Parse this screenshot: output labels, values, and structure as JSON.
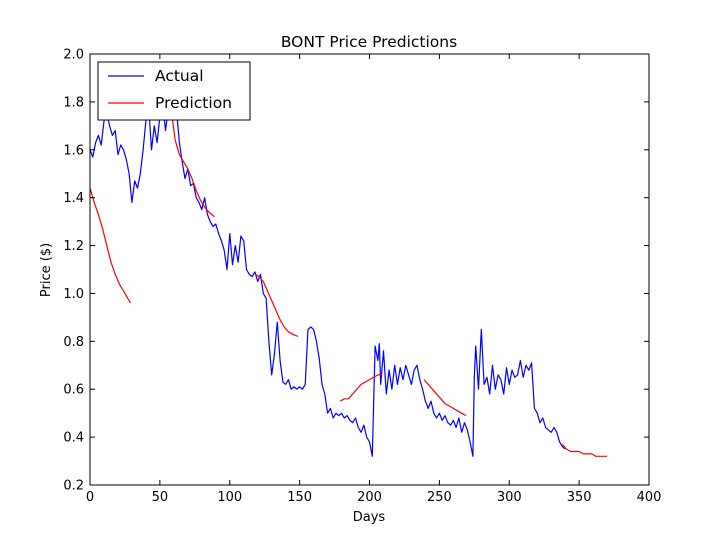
{
  "chart_data": {
    "type": "line",
    "title": "BONT Price Predictions",
    "xlabel": "Days",
    "ylabel": "Price ($)",
    "xlim": [
      0,
      400
    ],
    "ylim": [
      0.2,
      2.0
    ],
    "xticks": [
      0,
      50,
      100,
      150,
      200,
      250,
      300,
      350,
      400
    ],
    "yticks": [
      0.2,
      0.4,
      0.6,
      0.8,
      1.0,
      1.2,
      1.4,
      1.6,
      1.8,
      2.0
    ],
    "ytick_labels": [
      "0.2",
      "0.4",
      "0.6",
      "0.8",
      "1.0",
      "1.2",
      "1.4",
      "1.6",
      "1.8",
      "2.0"
    ],
    "grid": false,
    "legend_position": "top-left",
    "series": [
      {
        "name": "Actual",
        "color": "#0000ff",
        "x": [
          0,
          2,
          4,
          6,
          8,
          10,
          12,
          14,
          16,
          18,
          20,
          22,
          24,
          26,
          28,
          30,
          32,
          34,
          36,
          38,
          40,
          42,
          44,
          46,
          48,
          50,
          52,
          54,
          56,
          58,
          60,
          62,
          64,
          66,
          68,
          70,
          72,
          74,
          76,
          78,
          80,
          82,
          84,
          86,
          88,
          90,
          92,
          94,
          96,
          98,
          100,
          102,
          104,
          106,
          108,
          110,
          112,
          114,
          116,
          118,
          120,
          122,
          124,
          126,
          128,
          130,
          132,
          134,
          136,
          138,
          140,
          142,
          144,
          146,
          148,
          150,
          152,
          154,
          156,
          158,
          160,
          162,
          164,
          166,
          168,
          170,
          172,
          174,
          176,
          178,
          180,
          182,
          184,
          186,
          188,
          190,
          192,
          194,
          196,
          198,
          200,
          202,
          204,
          206,
          207,
          208,
          210,
          212,
          214,
          216,
          218,
          220,
          222,
          224,
          226,
          228,
          230,
          232,
          234,
          236,
          238,
          240,
          242,
          244,
          246,
          248,
          250,
          252,
          254,
          256,
          258,
          260,
          262,
          264,
          266,
          268,
          270,
          272,
          274,
          275,
          276,
          278,
          280,
          282,
          284,
          286,
          288,
          290,
          292,
          294,
          296,
          298,
          300,
          302,
          304,
          306,
          308,
          310,
          312,
          314,
          316,
          318,
          320,
          322,
          324,
          326,
          328,
          330,
          332,
          334,
          336,
          338,
          340
        ],
        "y": [
          1.6,
          1.57,
          1.63,
          1.66,
          1.62,
          1.72,
          1.75,
          1.7,
          1.66,
          1.68,
          1.58,
          1.62,
          1.6,
          1.56,
          1.5,
          1.38,
          1.47,
          1.44,
          1.5,
          1.6,
          1.72,
          1.78,
          1.6,
          1.7,
          1.63,
          1.74,
          1.8,
          1.68,
          1.77,
          1.75,
          1.82,
          1.76,
          1.63,
          1.55,
          1.48,
          1.52,
          1.45,
          1.46,
          1.4,
          1.38,
          1.35,
          1.4,
          1.33,
          1.3,
          1.28,
          1.29,
          1.25,
          1.22,
          1.18,
          1.1,
          1.25,
          1.12,
          1.2,
          1.13,
          1.24,
          1.22,
          1.1,
          1.08,
          1.07,
          1.09,
          1.05,
          1.08,
          1.0,
          0.98,
          0.8,
          0.66,
          0.75,
          0.88,
          0.72,
          0.63,
          0.62,
          0.64,
          0.6,
          0.61,
          0.6,
          0.61,
          0.6,
          0.62,
          0.85,
          0.86,
          0.85,
          0.8,
          0.73,
          0.62,
          0.58,
          0.5,
          0.52,
          0.48,
          0.5,
          0.49,
          0.5,
          0.48,
          0.49,
          0.47,
          0.46,
          0.48,
          0.44,
          0.42,
          0.45,
          0.4,
          0.38,
          0.32,
          0.78,
          0.72,
          0.79,
          0.62,
          0.76,
          0.58,
          0.68,
          0.6,
          0.7,
          0.62,
          0.69,
          0.64,
          0.7,
          0.66,
          0.62,
          0.68,
          0.7,
          0.64,
          0.6,
          0.55,
          0.52,
          0.55,
          0.5,
          0.48,
          0.5,
          0.47,
          0.49,
          0.46,
          0.45,
          0.47,
          0.44,
          0.48,
          0.42,
          0.46,
          0.43,
          0.38,
          0.32,
          0.65,
          0.78,
          0.6,
          0.85,
          0.62,
          0.65,
          0.58,
          0.7,
          0.6,
          0.66,
          0.64,
          0.58,
          0.69,
          0.62,
          0.68,
          0.65,
          0.66,
          0.72,
          0.65,
          0.7,
          0.68,
          0.71,
          0.52,
          0.5,
          0.46,
          0.48,
          0.44,
          0.43,
          0.42,
          0.44,
          0.42,
          0.38,
          0.36,
          0.35
        ]
      },
      {
        "name": "Prediction",
        "color": "#ff0000",
        "segments": [
          {
            "x": [
              0,
              3,
              6,
              9,
              12,
              15,
              18,
              21,
              24,
              27,
              29
            ],
            "y": [
              1.44,
              1.38,
              1.33,
              1.27,
              1.2,
              1.13,
              1.08,
              1.04,
              1.01,
              0.98,
              0.96
            ]
          },
          {
            "x": [
              58,
              61,
              64,
              67,
              70,
              73,
              76,
              79,
              82,
              85,
              89
            ],
            "y": [
              1.77,
              1.64,
              1.58,
              1.55,
              1.52,
              1.48,
              1.43,
              1.39,
              1.36,
              1.34,
              1.32
            ]
          },
          {
            "x": [
              118,
              121,
              124,
              127,
              130,
              133,
              136,
              139,
              142,
              145,
              149
            ],
            "y": [
              1.08,
              1.07,
              1.05,
              1.01,
              0.97,
              0.93,
              0.89,
              0.86,
              0.84,
              0.83,
              0.82
            ]
          },
          {
            "x": [
              179,
              182,
              185,
              188,
              191,
              194,
              197,
              200,
              203,
              206,
              209
            ],
            "y": [
              0.55,
              0.56,
              0.56,
              0.58,
              0.6,
              0.62,
              0.63,
              0.64,
              0.65,
              0.66,
              0.66
            ]
          },
          {
            "x": [
              239,
              242,
              245,
              248,
              251,
              254,
              257,
              260,
              263,
              266,
              269
            ],
            "y": [
              0.64,
              0.62,
              0.6,
              0.58,
              0.56,
              0.54,
              0.53,
              0.52,
              0.51,
              0.5,
              0.49
            ]
          },
          {
            "x": [
              338,
              341,
              344,
              347,
              350,
              353,
              356,
              359,
              362,
              365,
              370
            ],
            "y": [
              0.37,
              0.35,
              0.34,
              0.34,
              0.34,
              0.33,
              0.33,
              0.33,
              0.32,
              0.32,
              0.32
            ]
          }
        ]
      }
    ]
  }
}
